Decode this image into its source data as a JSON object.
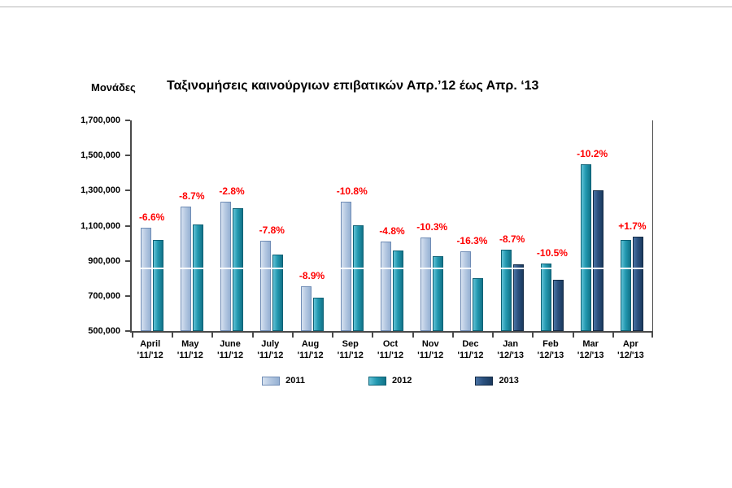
{
  "chart_data": {
    "type": "bar",
    "title": "Ταξινομήσεις καινούργιων επιβατικών Απρ.’12  έως Απρ. ‘13",
    "ylabel": "Μονάδες",
    "xlabel": "",
    "ylim": [
      500000,
      1700000
    ],
    "yticks": [
      "1,700,000",
      "1,500,000",
      "1,300,000",
      "1,100,000",
      "900,000",
      "700,000",
      "500,000"
    ],
    "grid": "off",
    "legend_position": "bottom",
    "reference_line_value": 860000,
    "series_names": [
      "2011",
      "2012",
      "2013"
    ],
    "groups": [
      {
        "month": "April",
        "years": "'11/'12",
        "pct": "-6.6%",
        "bars": [
          {
            "series": "2011",
            "value": 1090000
          },
          {
            "series": "2012",
            "value": 1018000
          }
        ]
      },
      {
        "month": "May",
        "years": "'11/'12",
        "pct": "-8.7%",
        "bars": [
          {
            "series": "2011",
            "value": 1210000
          },
          {
            "series": "2012",
            "value": 1105000
          }
        ]
      },
      {
        "month": "June",
        "years": "'11/'12",
        "pct": "-2.8%",
        "bars": [
          {
            "series": "2011",
            "value": 1235000
          },
          {
            "series": "2012",
            "value": 1200000
          }
        ]
      },
      {
        "month": "July",
        "years": "'11/'12",
        "pct": "-7.8%",
        "bars": [
          {
            "series": "2011",
            "value": 1015000
          },
          {
            "series": "2012",
            "value": 936000
          }
        ]
      },
      {
        "month": "Aug",
        "years": "'11/'12",
        "pct": "-8.9%",
        "bars": [
          {
            "series": "2011",
            "value": 755000
          },
          {
            "series": "2012",
            "value": 688000
          }
        ]
      },
      {
        "month": "Sep",
        "years": "'11/'12",
        "pct": "-10.8%",
        "bars": [
          {
            "series": "2011",
            "value": 1235000
          },
          {
            "series": "2012",
            "value": 1102000
          }
        ]
      },
      {
        "month": "Oct",
        "years": "'11/'12",
        "pct": "-4.8%",
        "bars": [
          {
            "series": "2011",
            "value": 1010000
          },
          {
            "series": "2012",
            "value": 961000
          }
        ]
      },
      {
        "month": "Nov",
        "years": "'11/'12",
        "pct": "-10.3%",
        "bars": [
          {
            "series": "2011",
            "value": 1035000
          },
          {
            "series": "2012",
            "value": 928000
          }
        ]
      },
      {
        "month": "Dec",
        "years": "'11/'12",
        "pct": "-16.3%",
        "bars": [
          {
            "series": "2011",
            "value": 955000
          },
          {
            "series": "2012",
            "value": 799000
          }
        ]
      },
      {
        "month": "Jan",
        "years": "'12/'13",
        "pct": "-8.7%",
        "bars": [
          {
            "series": "2012",
            "value": 965000
          },
          {
            "series": "2013",
            "value": 881000
          }
        ]
      },
      {
        "month": "Feb",
        "years": "'12/'13",
        "pct": "-10.5%",
        "bars": [
          {
            "series": "2012",
            "value": 885000
          },
          {
            "series": "2013",
            "value": 792000
          }
        ]
      },
      {
        "month": "Mar",
        "years": "'12/'13",
        "pct": "-10.2%",
        "bars": [
          {
            "series": "2012",
            "value": 1450000
          },
          {
            "series": "2013",
            "value": 1302000
          }
        ]
      },
      {
        "month": "Apr",
        "years": "'12/'13",
        "pct": "+1.7%",
        "bars": [
          {
            "series": "2012",
            "value": 1020000
          },
          {
            "series": "2013",
            "value": 1037000
          }
        ]
      }
    ],
    "legend": [
      {
        "label": "2011",
        "color": "#b6c9e2"
      },
      {
        "label": "2012",
        "color": "#2399b1"
      },
      {
        "label": "2013",
        "color": "#2b517f"
      }
    ],
    "colors": {
      "pct_label": "#ff0000",
      "axis": "#4a4a4a",
      "reference_line": "#ffffff"
    }
  }
}
